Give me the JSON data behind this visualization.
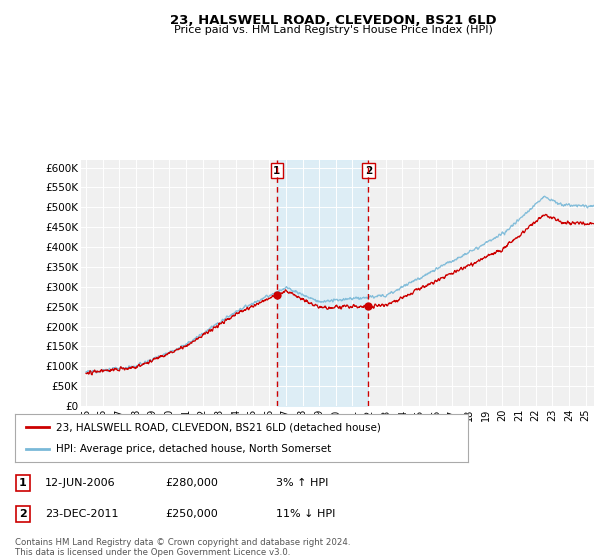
{
  "title": "23, HALSWELL ROAD, CLEVEDON, BS21 6LD",
  "subtitle": "Price paid vs. HM Land Registry's House Price Index (HPI)",
  "ylabel_ticks": [
    "£0",
    "£50K",
    "£100K",
    "£150K",
    "£200K",
    "£250K",
    "£300K",
    "£350K",
    "£400K",
    "£450K",
    "£500K",
    "£550K",
    "£600K"
  ],
  "ytick_values": [
    0,
    50000,
    100000,
    150000,
    200000,
    250000,
    300000,
    350000,
    400000,
    450000,
    500000,
    550000,
    600000
  ],
  "ylim": [
    0,
    620000
  ],
  "hpi_color": "#7ab9d8",
  "price_color": "#cc0000",
  "shade_color": "#daedf7",
  "sale1_year": 2006.46,
  "sale1_price": 280000,
  "sale2_year": 2011.96,
  "sale2_price": 250000,
  "legend_line1": "23, HALSWELL ROAD, CLEVEDON, BS21 6LD (detached house)",
  "legend_line2": "HPI: Average price, detached house, North Somerset",
  "footer": "Contains HM Land Registry data © Crown copyright and database right 2024.\nThis data is licensed under the Open Government Licence v3.0.",
  "background_color": "#ffffff",
  "plot_bg_color": "#f0f0f0"
}
